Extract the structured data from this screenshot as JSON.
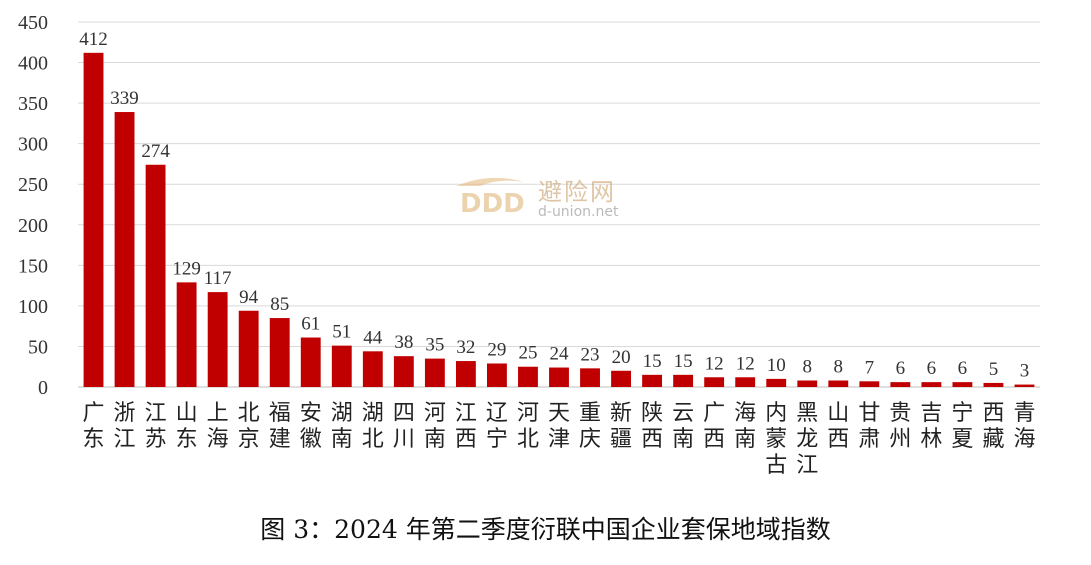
{
  "chart_data": {
    "type": "bar",
    "categories": [
      "广东",
      "浙江",
      "江苏",
      "山东",
      "上海",
      "北京",
      "福建",
      "安徽",
      "湖南",
      "湖北",
      "四川",
      "河南",
      "江西",
      "辽宁",
      "河北",
      "天津",
      "重庆",
      "新疆",
      "陕西",
      "云南",
      "广西",
      "海南",
      "内蒙古",
      "黑龙江",
      "山西",
      "甘肃",
      "贵州",
      "吉林",
      "宁夏",
      "西藏",
      "青海"
    ],
    "values": [
      412,
      339,
      274,
      129,
      117,
      94,
      85,
      61,
      51,
      44,
      38,
      35,
      32,
      29,
      25,
      24,
      23,
      20,
      15,
      15,
      12,
      12,
      10,
      8,
      8,
      7,
      6,
      6,
      6,
      5,
      3
    ],
    "ylim": [
      0,
      450
    ],
    "yticks": [
      0,
      50,
      100,
      150,
      200,
      250,
      300,
      350,
      400,
      450
    ],
    "grid": true,
    "bar_color": "#c00000"
  },
  "caption": "图 3：2024 年第二季度衍联中国企业套保地域指数",
  "watermark": {
    "brand": "避险网",
    "url": "d-union.net"
  }
}
